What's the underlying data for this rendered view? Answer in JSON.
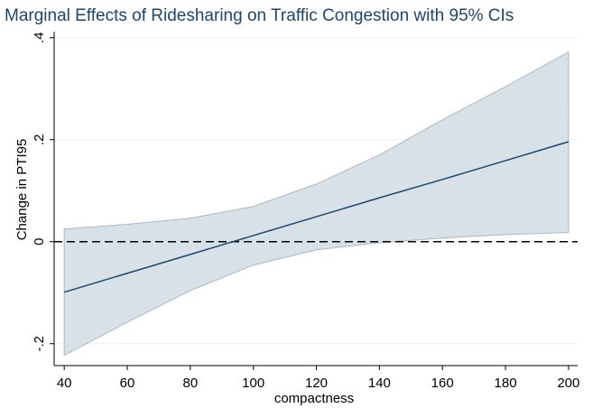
{
  "chart_data": {
    "type": "line",
    "title": "Marginal Effects of Ridesharing on Traffic Congestion with 95% CIs",
    "xlabel": "compactness",
    "ylabel": "Change in PTI95",
    "x": [
      40,
      60,
      80,
      100,
      120,
      140,
      160,
      180,
      200
    ],
    "values": [
      -0.099,
      -0.062,
      -0.025,
      0.012,
      0.049,
      0.086,
      0.122,
      0.159,
      0.196
    ],
    "ci_upper": [
      0.025,
      0.034,
      0.046,
      0.069,
      0.113,
      0.17,
      0.239,
      0.304,
      0.372
    ],
    "ci_lower": [
      -0.223,
      -0.158,
      -0.096,
      -0.046,
      -0.016,
      -0.002,
      0.007,
      0.014,
      0.018
    ],
    "color": "#1a476f",
    "band_color": "#d9e1e8",
    "band_edge_color": "#a9b9c6",
    "reference_line": 0,
    "xlim": [
      36.8,
      202.9
    ],
    "xticks": [
      40,
      60,
      80,
      100,
      120,
      140,
      160,
      180,
      200
    ],
    "ylim": [
      -0.243,
      0.412
    ],
    "yticks": [
      {
        "value": -0.2,
        "label": "-.2"
      },
      0,
      {
        "value": 0.2,
        "label": ".2"
      },
      {
        "value": 0.4,
        "label": ".4"
      }
    ],
    "grid": true
  }
}
